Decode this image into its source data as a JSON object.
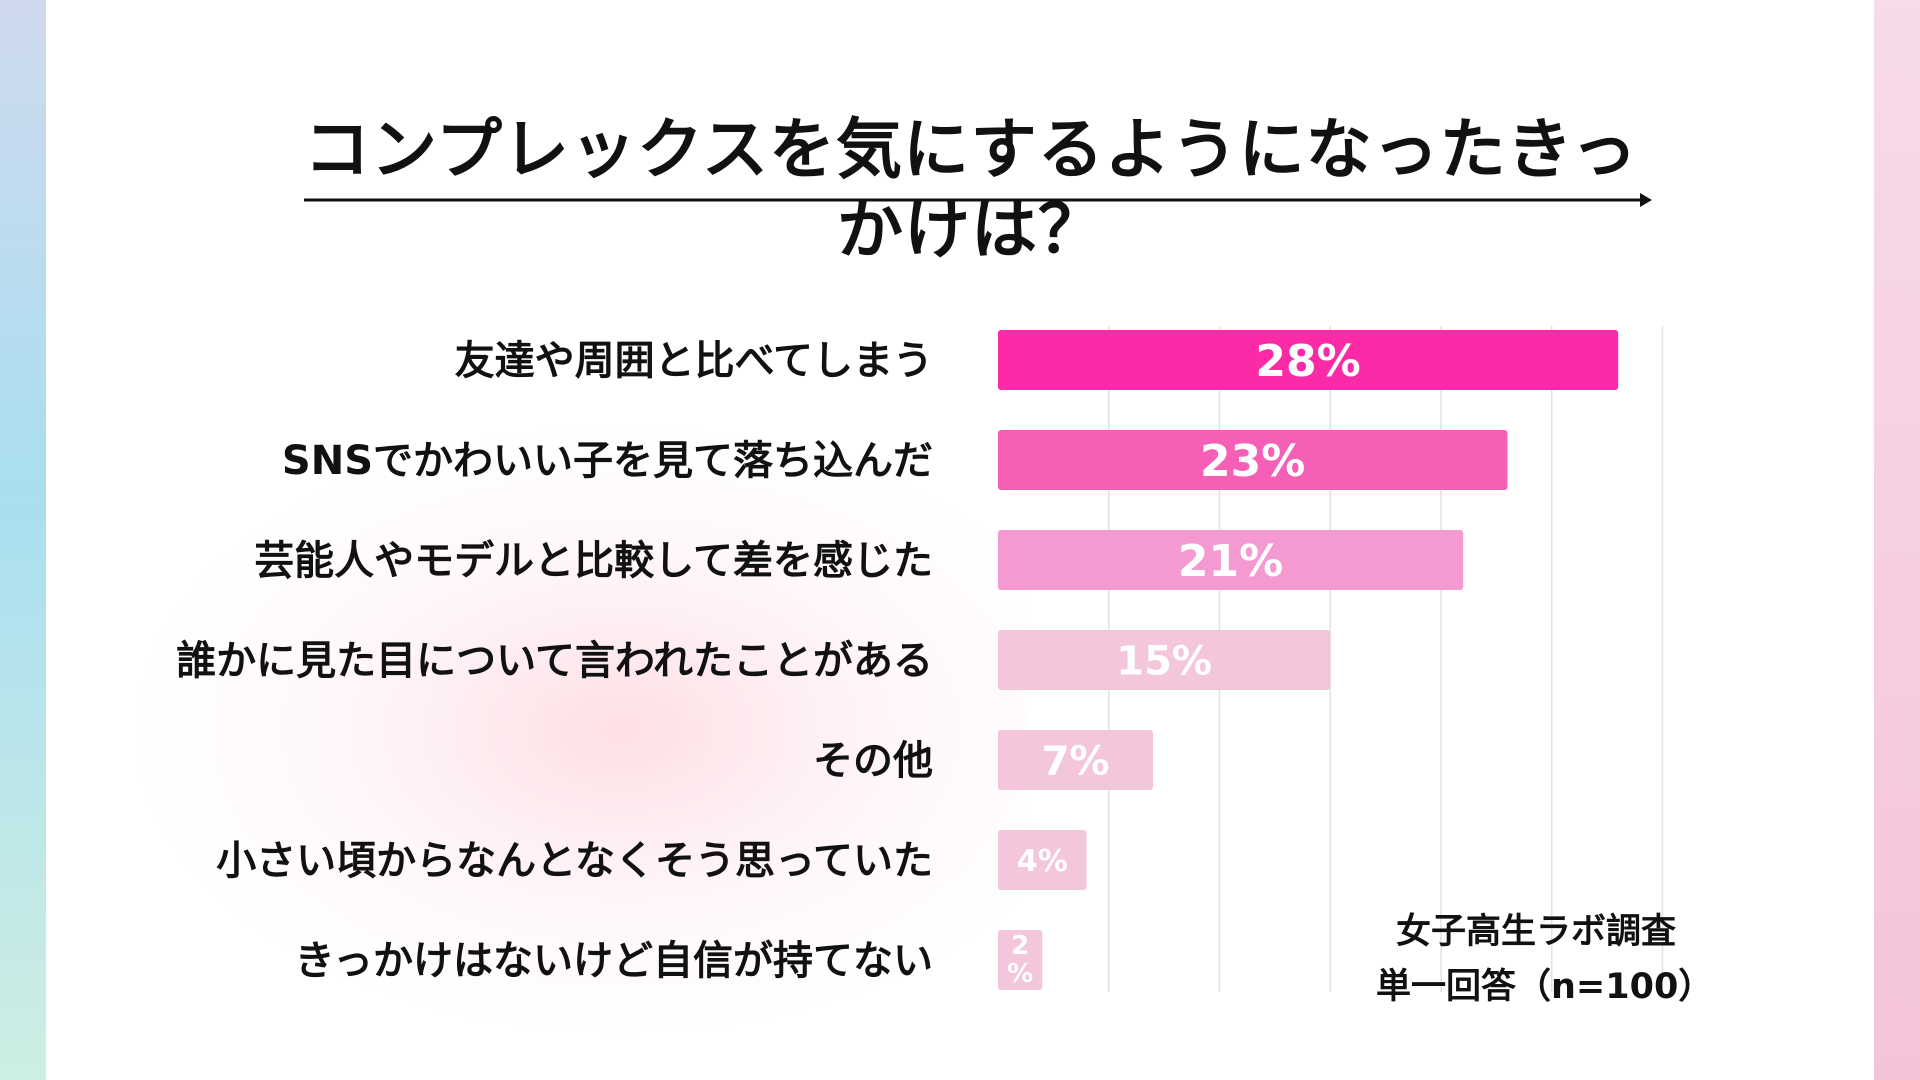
{
  "title": "コンプレックスを気にするようになったきっかけは？",
  "source": {
    "line1": "女子高生ラボ調査",
    "line2": "単一回答（n=100）"
  },
  "colors": [
    "#fb2aa6",
    "#f55fb5",
    "#f49ad0",
    "#f3c6dc",
    "#f3c6dc",
    "#f3c6dc",
    "#f3c6dc"
  ],
  "chart_data": {
    "type": "bar",
    "orientation": "horizontal",
    "title": "コンプレックスを気にするようになったきっかけは？",
    "categories": [
      "友達や周囲と比べてしまう",
      "SNSでかわいい子を見て落ち込んだ",
      "芸能人やモデルと比較して差を感じた",
      "誰かに見た目について言われたことがある",
      "その他",
      "小さい頃からなんとなくそう思っていた",
      "きっかけはないけど自信が持てない"
    ],
    "values": [
      28,
      23,
      21,
      15,
      7,
      4,
      2
    ],
    "value_labels": [
      "28%",
      "23%",
      "21%",
      "15%",
      "7%",
      "4%",
      "2%"
    ],
    "xlim": [
      0,
      30
    ],
    "grid": true,
    "xlabel": "",
    "ylabel": ""
  }
}
